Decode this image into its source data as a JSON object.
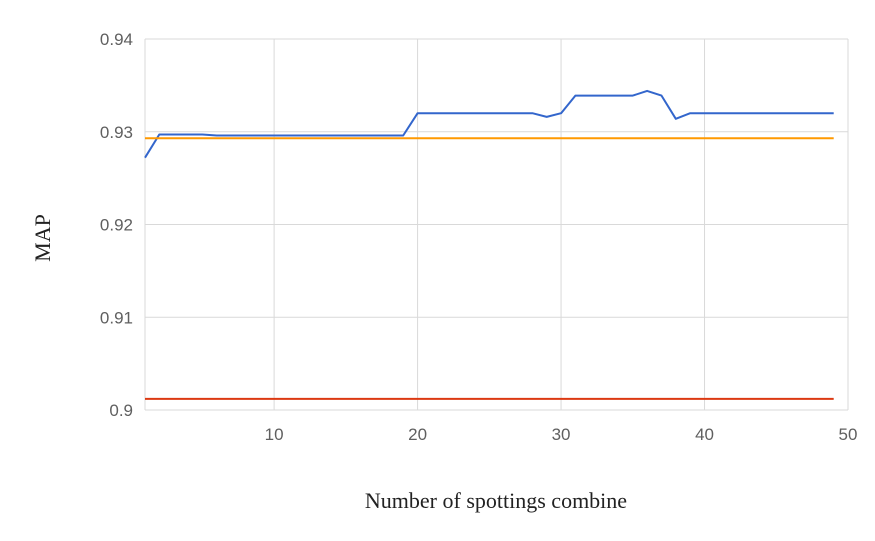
{
  "chart_data": {
    "type": "line",
    "title": "",
    "xlabel": "Number of spottings combine",
    "ylabel": "MAP",
    "xlim": [
      1,
      50
    ],
    "ylim": [
      0.9,
      0.94
    ],
    "x_ticks": [
      10,
      20,
      30,
      40,
      50
    ],
    "x_tick_labels": [
      "10",
      "20",
      "30",
      "40",
      "50"
    ],
    "y_ticks": [
      0.9,
      0.91,
      0.92,
      0.93,
      0.94
    ],
    "y_tick_labels": [
      "0.9",
      "0.91",
      "0.92",
      "0.93",
      "0.94"
    ],
    "grid": true,
    "legend": "none",
    "series": [
      {
        "color": "#3366cc",
        "x": [
          1,
          2,
          3,
          4,
          5,
          6,
          7,
          8,
          9,
          10,
          11,
          12,
          13,
          14,
          15,
          16,
          17,
          18,
          19,
          20,
          21,
          22,
          23,
          24,
          25,
          26,
          27,
          28,
          29,
          30,
          31,
          32,
          33,
          34,
          35,
          36,
          37,
          38,
          39,
          40,
          41,
          42,
          43,
          44,
          45,
          46,
          47,
          48,
          49
        ],
        "values": [
          0.9272,
          0.9297,
          0.9297,
          0.9297,
          0.9297,
          0.9296,
          0.9296,
          0.9296,
          0.9296,
          0.9296,
          0.9296,
          0.9296,
          0.9296,
          0.9296,
          0.9296,
          0.9296,
          0.9296,
          0.9296,
          0.9296,
          0.932,
          0.932,
          0.932,
          0.932,
          0.932,
          0.932,
          0.932,
          0.932,
          0.932,
          0.9316,
          0.932,
          0.9339,
          0.9339,
          0.9339,
          0.9339,
          0.9339,
          0.9344,
          0.9339,
          0.9314,
          0.932,
          0.932,
          0.932,
          0.932,
          0.932,
          0.932,
          0.932,
          0.932,
          0.932,
          0.932,
          0.932
        ]
      },
      {
        "color": "#ff9900",
        "x": [
          1,
          49
        ],
        "values": [
          0.9293,
          0.9293
        ]
      },
      {
        "color": "#dc3912",
        "x": [
          1,
          49
        ],
        "values": [
          0.9012,
          0.9012
        ]
      }
    ]
  }
}
